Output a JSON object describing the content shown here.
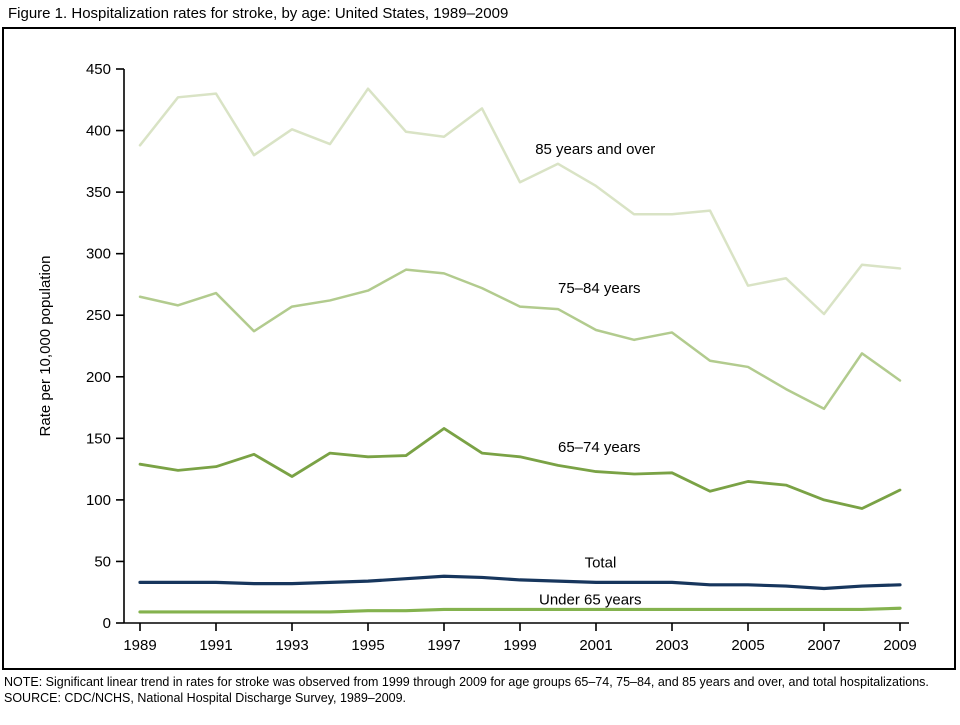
{
  "title": "Figure 1. Hospitalization rates for stroke, by age: United States, 1989–2009",
  "notes": {
    "note": "NOTE: Significant linear trend in rates for stroke was observed from 1999 through 2009 for age groups 65–74, 75–84, and 85 years and over, and total hospitalizations.",
    "source": "SOURCE: CDC/NCHS, National Hospital Discharge Survey, 1989–2009."
  },
  "chart_data": {
    "type": "line",
    "title": "Figure 1. Hospitalization rates for stroke, by age: United States, 1989–2009",
    "xlabel": "",
    "ylabel": "Rate per 10,000 population",
    "ylim": [
      0,
      450
    ],
    "yticks": [
      0,
      50,
      100,
      150,
      200,
      250,
      300,
      350,
      400,
      450
    ],
    "x": [
      1989,
      1990,
      1991,
      1992,
      1993,
      1994,
      1995,
      1996,
      1997,
      1998,
      1999,
      2000,
      2001,
      2002,
      2003,
      2004,
      2005,
      2006,
      2007,
      2008,
      2009
    ],
    "xticks": [
      1989,
      1991,
      1993,
      1995,
      1997,
      1999,
      2001,
      2003,
      2005,
      2007,
      2009
    ],
    "grid": false,
    "legend_position": "inline-labels",
    "series": [
      {
        "name": "85 years and over",
        "color": "#d9e3c5",
        "width": 2.5,
        "values": [
          388,
          427,
          430,
          380,
          401,
          389,
          434,
          399,
          395,
          418,
          358,
          373,
          355,
          332,
          332,
          335,
          274,
          280,
          251,
          291,
          288
        ]
      },
      {
        "name": "75–84 years",
        "color": "#b2cb8e",
        "width": 2.5,
        "values": [
          265,
          258,
          268,
          237,
          257,
          262,
          270,
          287,
          284,
          272,
          257,
          255,
          238,
          230,
          236,
          213,
          208,
          190,
          174,
          219,
          197
        ]
      },
      {
        "name": "65–74 years",
        "color": "#7aa245",
        "width": 2.8,
        "values": [
          129,
          124,
          127,
          137,
          119,
          138,
          135,
          136,
          158,
          138,
          135,
          128,
          123,
          121,
          122,
          107,
          115,
          112,
          100,
          93,
          108
        ]
      },
      {
        "name": "Total",
        "color": "#17365d",
        "width": 3.2,
        "values": [
          33,
          33,
          33,
          32,
          32,
          33,
          34,
          36,
          38,
          37,
          35,
          34,
          33,
          33,
          33,
          31,
          31,
          30,
          28,
          30,
          31
        ]
      },
      {
        "name": "Under 65 years",
        "color": "#84b24e",
        "width": 3.2,
        "values": [
          9,
          9,
          9,
          9,
          9,
          9,
          10,
          10,
          11,
          11,
          11,
          11,
          11,
          11,
          11,
          11,
          11,
          11,
          11,
          11,
          12
        ]
      }
    ],
    "annotations": [
      {
        "text": "85 years and over",
        "year": 1999.4,
        "value": 385
      },
      {
        "text": "75–84 years",
        "year": 2000.0,
        "value": 272
      },
      {
        "text": "65–74 years",
        "year": 2000.0,
        "value": 143
      },
      {
        "text": "Total",
        "year": 2000.7,
        "value": 49
      },
      {
        "text": "Under 65 years",
        "year": 1999.5,
        "value": 19
      }
    ]
  }
}
